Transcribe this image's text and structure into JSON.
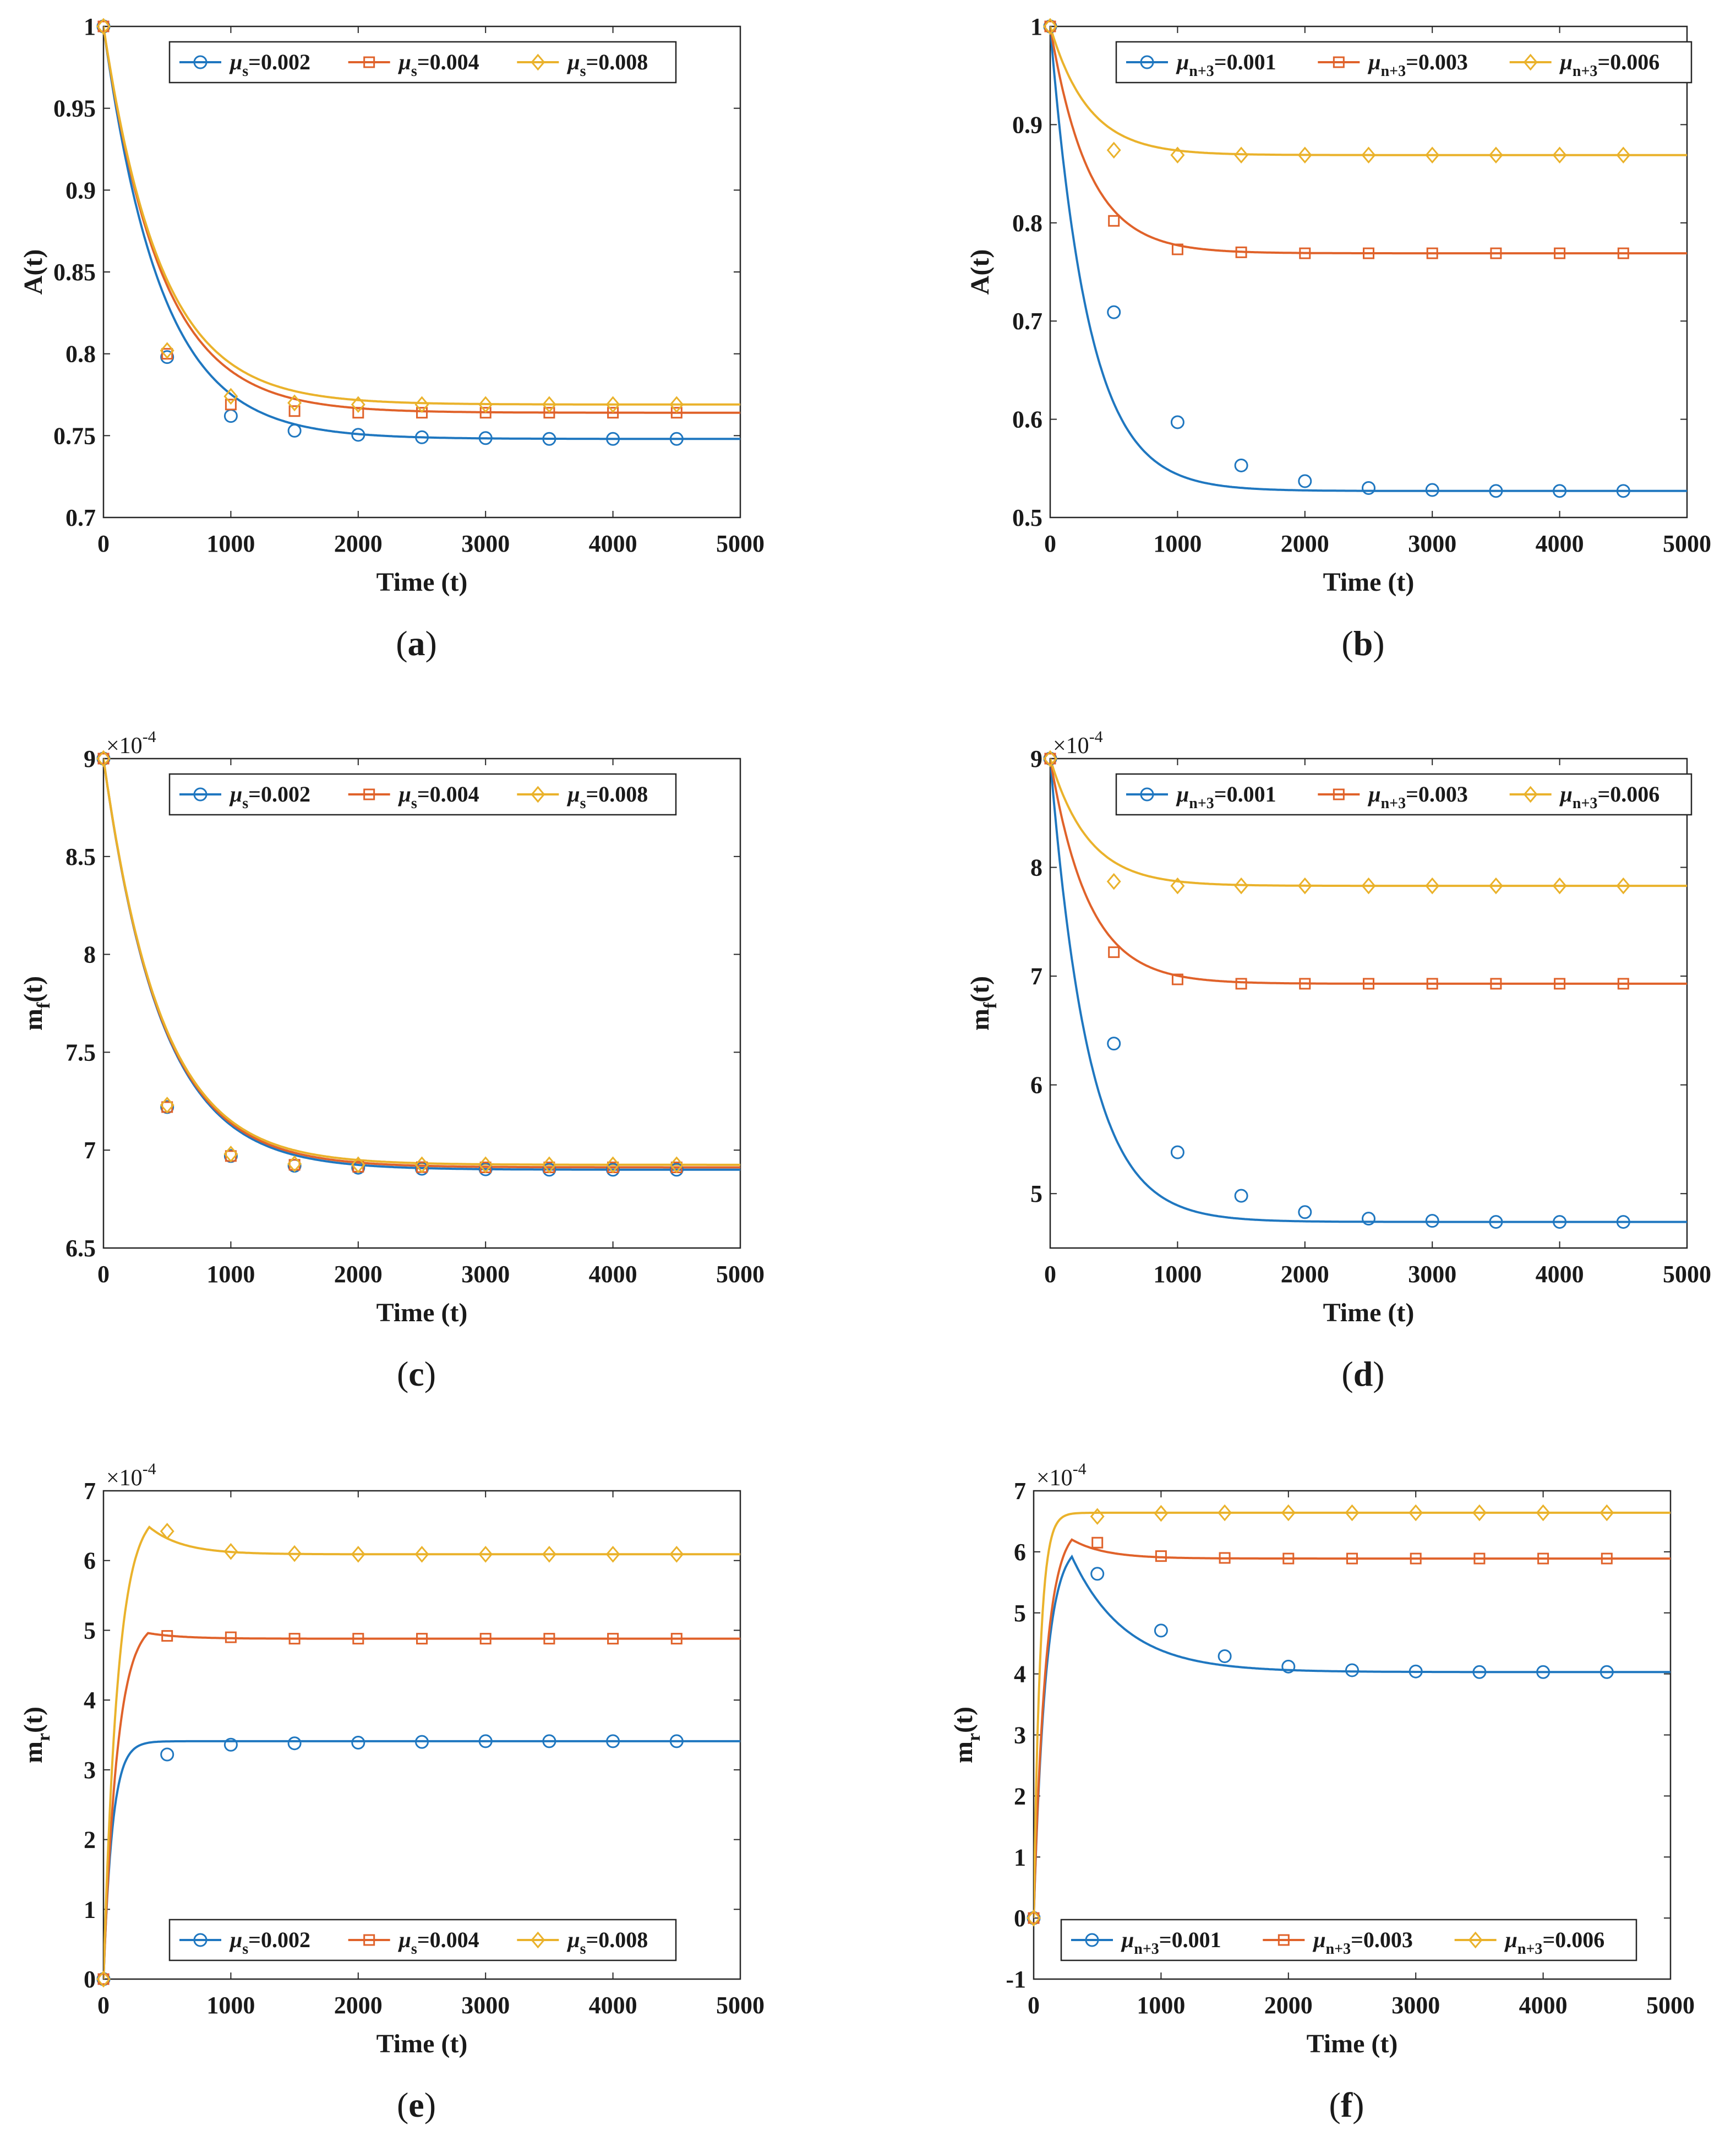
{
  "colors": {
    "blue": "#1f77c0",
    "orange": "#e0622a",
    "yellow": "#eab22b"
  },
  "chart_data": [
    {
      "id": "a",
      "type": "line",
      "caption": "a",
      "xlabel": "Time (t)",
      "ylabel": "A(t)",
      "xlim": [
        0,
        5000
      ],
      "ylim": [
        0.7,
        1
      ],
      "xticks": [
        0,
        1000,
        2000,
        3000,
        4000,
        5000
      ],
      "yticks": [
        0.7,
        0.75,
        0.8,
        0.85,
        0.9,
        0.95,
        1
      ],
      "ytick_labels": [
        "0.7",
        "0.75",
        "0.8",
        "0.85",
        "0.9",
        "0.95",
        "1"
      ],
      "exponent": null,
      "legend_loc": "top",
      "decay": 450,
      "x_markers": [
        0,
        500,
        1000,
        1500,
        2000,
        2500,
        3000,
        3500,
        4000,
        4500
      ],
      "series": [
        {
          "param": "s",
          "value": "=0.002",
          "color": "#1f77c0",
          "marker": "circle",
          "values": [
            1.0,
            0.798,
            0.762,
            0.753,
            0.7505,
            0.749,
            0.7485,
            0.748,
            0.748,
            0.748
          ],
          "final": 0.748
        },
        {
          "param": "s",
          "value": "=0.004",
          "color": "#e0622a",
          "marker": "square",
          "values": [
            1.0,
            0.8,
            0.769,
            0.765,
            0.764,
            0.764,
            0.764,
            0.764,
            0.764,
            0.764
          ],
          "final": 0.764
        },
        {
          "param": "s",
          "value": "=0.008",
          "color": "#eab22b",
          "marker": "diamond",
          "values": [
            1.0,
            0.802,
            0.774,
            0.77,
            0.769,
            0.769,
            0.769,
            0.769,
            0.769,
            0.769
          ],
          "final": 0.769
        }
      ]
    },
    {
      "id": "b",
      "type": "line",
      "caption": "b",
      "xlabel": "Time (t)",
      "ylabel": "A(t)",
      "xlim": [
        0,
        5000
      ],
      "ylim": [
        0.5,
        1
      ],
      "xticks": [
        0,
        1000,
        2000,
        3000,
        4000,
        5000
      ],
      "yticks": [
        0.5,
        0.6,
        0.7,
        0.8,
        0.9,
        1
      ],
      "ytick_labels": [
        "0.5",
        "0.6",
        "0.7",
        "0.8",
        "0.9",
        "1"
      ],
      "exponent": null,
      "legend_loc": "top",
      "decay": 300,
      "x_markers": [
        0,
        500,
        1000,
        1500,
        2000,
        2500,
        3000,
        3500,
        4000,
        4500
      ],
      "series": [
        {
          "param": "n+3",
          "value": "=0.001",
          "color": "#1f77c0",
          "marker": "circle",
          "values": [
            1.0,
            0.709,
            0.597,
            0.553,
            0.537,
            0.53,
            0.528,
            0.527,
            0.527,
            0.527
          ],
          "final": 0.527
        },
        {
          "param": "n+3",
          "value": "=0.003",
          "color": "#e0622a",
          "marker": "square",
          "values": [
            1.0,
            0.802,
            0.773,
            0.77,
            0.769,
            0.769,
            0.769,
            0.769,
            0.769,
            0.769
          ],
          "final": 0.769
        },
        {
          "param": "n+3",
          "value": "=0.006",
          "color": "#eab22b",
          "marker": "diamond",
          "values": [
            1.0,
            0.874,
            0.869,
            0.869,
            0.869,
            0.869,
            0.869,
            0.869,
            0.869,
            0.869
          ],
          "final": 0.869
        }
      ]
    },
    {
      "id": "c",
      "type": "line",
      "caption": "c",
      "xlabel": "Time (t)",
      "ylabel": "mf(t)",
      "ylabel_main": "m",
      "ylabel_sub": "f",
      "ylabel_tail": "(t)",
      "xlim": [
        0,
        5000
      ],
      "ylim": [
        6.5,
        9
      ],
      "xticks": [
        0,
        1000,
        2000,
        3000,
        4000,
        5000
      ],
      "yticks": [
        6.5,
        7,
        7.5,
        8,
        8.5,
        9
      ],
      "ytick_labels": [
        "6.5",
        "7",
        "7.5",
        "8",
        "8.5",
        "9"
      ],
      "exponent": "-4",
      "legend_loc": "top",
      "decay": 450,
      "x_markers": [
        0,
        500,
        1000,
        1500,
        2000,
        2500,
        3000,
        3500,
        4000,
        4500
      ],
      "series": [
        {
          "param": "s",
          "value": "=0.002",
          "color": "#1f77c0",
          "marker": "circle",
          "values": [
            9.0,
            7.22,
            6.97,
            6.92,
            6.91,
            6.905,
            6.902,
            6.9,
            6.9,
            6.9
          ],
          "final": 6.9
        },
        {
          "param": "s",
          "value": "=0.004",
          "color": "#e0622a",
          "marker": "square",
          "values": [
            9.0,
            7.22,
            6.97,
            6.925,
            6.915,
            6.913,
            6.912,
            6.912,
            6.912,
            6.912
          ],
          "final": 6.912
        },
        {
          "param": "s",
          "value": "=0.008",
          "color": "#eab22b",
          "marker": "diamond",
          "values": [
            9.0,
            7.23,
            6.98,
            6.93,
            6.925,
            6.925,
            6.925,
            6.925,
            6.925,
            6.925
          ],
          "final": 6.925
        }
      ]
    },
    {
      "id": "d",
      "type": "line",
      "caption": "d",
      "xlabel": "Time (t)",
      "ylabel": "mf(t)",
      "ylabel_main": "m",
      "ylabel_sub": "f",
      "ylabel_tail": "(t)",
      "xlim": [
        0,
        5000
      ],
      "ylim": [
        4.5,
        9
      ],
      "xticks": [
        0,
        1000,
        2000,
        3000,
        4000,
        5000
      ],
      "yticks": [
        5,
        6,
        7,
        8,
        9
      ],
      "ytick_labels": [
        "5",
        "6",
        "7",
        "8",
        "9"
      ],
      "exponent": "-4",
      "legend_loc": "top",
      "decay": 300,
      "x_markers": [
        0,
        500,
        1000,
        1500,
        2000,
        2500,
        3000,
        3500,
        4000,
        4500
      ],
      "series": [
        {
          "param": "n+3",
          "value": "=0.001",
          "color": "#1f77c0",
          "marker": "circle",
          "values": [
            9.0,
            6.38,
            5.38,
            4.98,
            4.83,
            4.77,
            4.75,
            4.74,
            4.74,
            4.74
          ],
          "final": 4.74
        },
        {
          "param": "n+3",
          "value": "=0.003",
          "color": "#e0622a",
          "marker": "square",
          "values": [
            9.0,
            7.22,
            6.97,
            6.93,
            6.93,
            6.93,
            6.93,
            6.93,
            6.93,
            6.93
          ],
          "final": 6.93
        },
        {
          "param": "n+3",
          "value": "=0.006",
          "color": "#eab22b",
          "marker": "diamond",
          "values": [
            9.0,
            7.87,
            7.83,
            7.83,
            7.83,
            7.83,
            7.83,
            7.83,
            7.83,
            7.83
          ],
          "final": 7.83
        }
      ]
    },
    {
      "id": "e",
      "type": "line",
      "caption": "e",
      "xlabel": "Time (t)",
      "ylabel": "mr(t)",
      "ylabel_main": "m",
      "ylabel_sub": "r",
      "ylabel_tail": "(t)",
      "xlim": [
        0,
        5000
      ],
      "ylim": [
        0,
        7
      ],
      "xticks": [
        0,
        1000,
        2000,
        3000,
        4000,
        5000
      ],
      "yticks": [
        0,
        1,
        2,
        3,
        4,
        5,
        6,
        7
      ],
      "ytick_labels": [
        "0",
        "1",
        "2",
        "3",
        "4",
        "5",
        "6",
        "7"
      ],
      "exponent": "-4",
      "legend_loc": "bottom",
      "decay": 70,
      "x_markers": [
        0,
        500,
        1000,
        1500,
        2000,
        2500,
        3000,
        3500,
        4000,
        4500
      ],
      "series": [
        {
          "param": "s",
          "value": "=0.002",
          "color": "#1f77c0",
          "marker": "circle",
          "values": [
            0.0,
            3.22,
            3.36,
            3.38,
            3.39,
            3.4,
            3.41,
            3.41,
            3.41,
            3.41
          ],
          "final": 3.41
        },
        {
          "param": "s",
          "value": "=0.004",
          "color": "#e0622a",
          "marker": "square",
          "values": [
            0.0,
            4.92,
            4.9,
            4.88,
            4.88,
            4.88,
            4.88,
            4.88,
            4.88,
            4.88
          ],
          "final": 4.88
        },
        {
          "param": "s",
          "value": "=0.008",
          "color": "#eab22b",
          "marker": "diamond",
          "values": [
            0.0,
            6.42,
            6.13,
            6.1,
            6.09,
            6.09,
            6.09,
            6.09,
            6.09,
            6.09
          ],
          "final": 6.09
        }
      ],
      "peaks": [
        null,
        {
          "x": 350,
          "y": 4.96
        },
        {
          "x": 360,
          "y": 6.48
        }
      ]
    },
    {
      "id": "f",
      "type": "line",
      "caption": "f",
      "xlabel": "Time (t)",
      "ylabel": "mr(t)",
      "ylabel_main": "m",
      "ylabel_sub": "r",
      "ylabel_tail": "(t)",
      "xlim": [
        0,
        5000
      ],
      "ylim": [
        -1,
        7
      ],
      "xticks": [
        0,
        1000,
        2000,
        3000,
        4000,
        5000
      ],
      "yticks": [
        -1,
        0,
        1,
        2,
        3,
        4,
        5,
        6,
        7
      ],
      "ytick_labels": [
        "-1",
        "0",
        "1",
        "2",
        "3",
        "4",
        "5",
        "6",
        "7"
      ],
      "exponent": "-4",
      "legend_loc": "bottom",
      "decay": 50,
      "x_markers": [
        0,
        500,
        1000,
        1500,
        2000,
        2500,
        3000,
        3500,
        4000,
        4500
      ],
      "series": [
        {
          "param": "n+3",
          "value": "=0.001",
          "color": "#1f77c0",
          "marker": "circle",
          "values": [
            0.0,
            5.64,
            4.71,
            4.29,
            4.12,
            4.06,
            4.04,
            4.03,
            4.03,
            4.03
          ],
          "final": 4.03
        },
        {
          "param": "n+3",
          "value": "=0.003",
          "color": "#e0622a",
          "marker": "square",
          "values": [
            0.0,
            6.15,
            5.93,
            5.9,
            5.89,
            5.89,
            5.89,
            5.89,
            5.89,
            5.89
          ],
          "final": 5.89
        },
        {
          "param": "n+3",
          "value": "=0.006",
          "color": "#eab22b",
          "marker": "diamond",
          "values": [
            0.0,
            6.58,
            6.63,
            6.64,
            6.64,
            6.64,
            6.64,
            6.64,
            6.64,
            6.64
          ],
          "final": 6.64
        }
      ],
      "peaks": [
        {
          "x": 300,
          "y": 5.92
        },
        {
          "x": 300,
          "y": 6.2
        },
        null
      ]
    }
  ]
}
